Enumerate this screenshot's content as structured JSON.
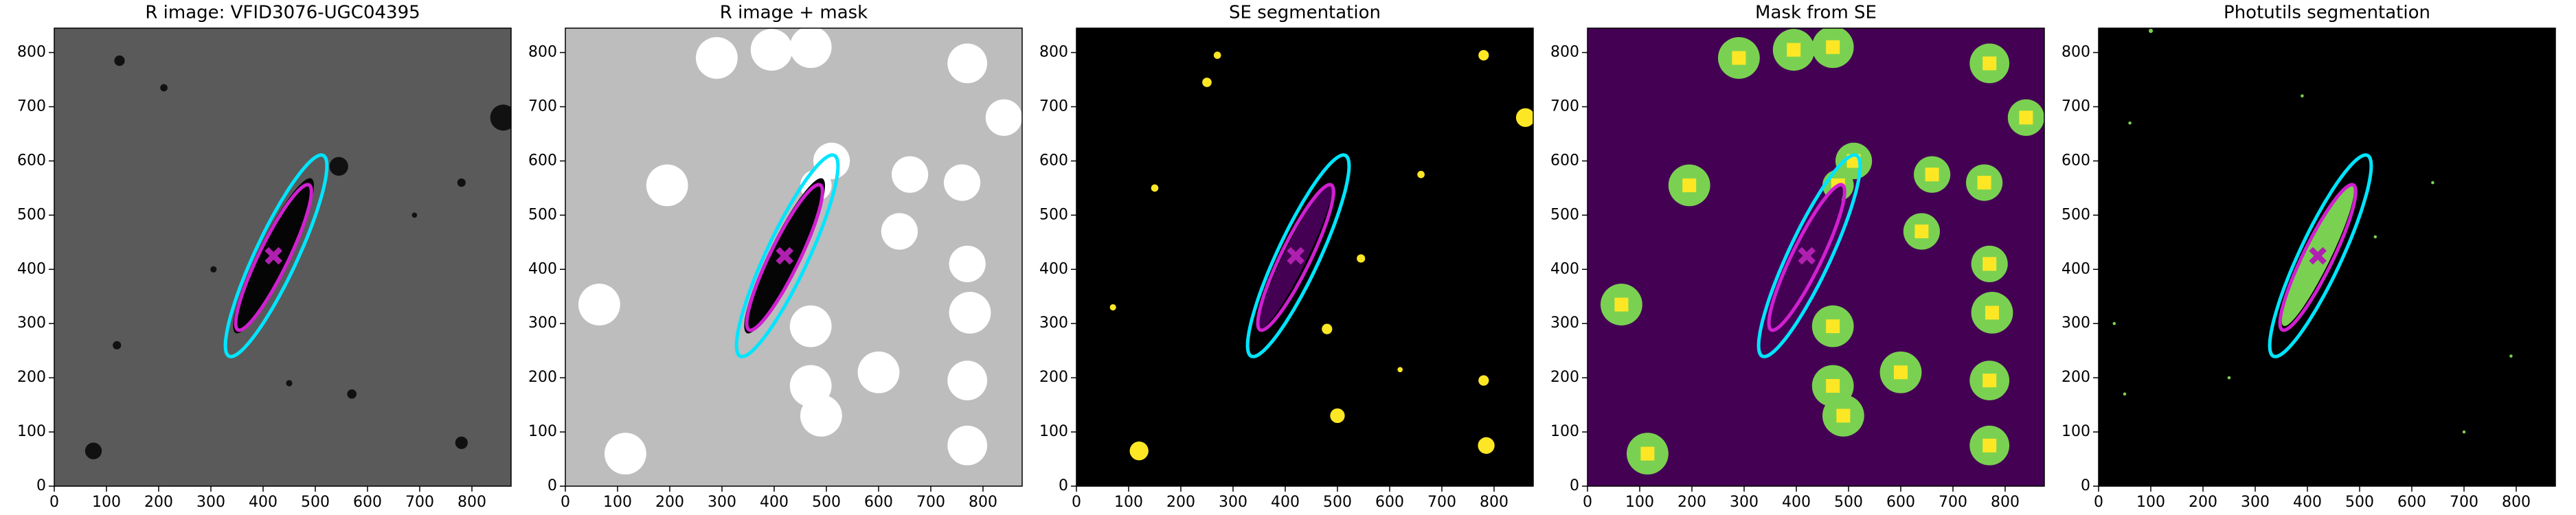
{
  "chart_data": [
    {
      "type": "image",
      "title": "R image: VFID3076-UGC04395",
      "background": "#5a5a5a",
      "source_color": "#111111",
      "xlim": [
        0,
        875
      ],
      "ylim": [
        0,
        845
      ],
      "xticks": [
        0,
        100,
        200,
        300,
        400,
        500,
        600,
        700,
        800
      ],
      "yticks": [
        0,
        100,
        200,
        300,
        400,
        500,
        600,
        700,
        800
      ],
      "galaxy": {
        "color": "#050505",
        "center": [
          420,
          425
        ],
        "semi_axes": [
          160,
          30
        ],
        "angle": 63
      },
      "ellipses": [
        {
          "color": "#00e5ff",
          "center": [
            425,
            425
          ],
          "semi_axes": [
            206,
            40
          ],
          "angle": 64
        },
        {
          "color": "#d020d0",
          "center": [
            420,
            422
          ],
          "semi_axes": [
            150,
            28
          ],
          "angle": 63
        }
      ],
      "marker": {
        "x": 420,
        "y": 425,
        "color": "#b020b0"
      }
    },
    {
      "type": "image",
      "title": "R image + mask",
      "background": "#bdbdbd",
      "source_color": "#ffffff",
      "xlim": [
        0,
        875
      ],
      "ylim": [
        0,
        845
      ],
      "xticks": [
        0,
        100,
        200,
        300,
        400,
        500,
        600,
        700,
        800
      ],
      "yticks": [
        0,
        100,
        200,
        300,
        400,
        500,
        600,
        700,
        800
      ],
      "galaxy": {
        "color": "#050505",
        "center": [
          420,
          425
        ],
        "semi_axes": [
          160,
          30
        ],
        "angle": 63
      },
      "ellipses": [
        {
          "color": "#00e5ff",
          "center": [
            425,
            425
          ],
          "semi_axes": [
            206,
            40
          ],
          "angle": 64
        },
        {
          "color": "#d020d0",
          "center": [
            420,
            422
          ],
          "semi_axes": [
            150,
            28
          ],
          "angle": 63
        }
      ],
      "marker": {
        "x": 420,
        "y": 425,
        "color": "#b020b0"
      }
    },
    {
      "type": "image",
      "title": "SE segmentation",
      "background": "#000000",
      "source_color": "#fde725",
      "xlim": [
        0,
        875
      ],
      "ylim": [
        0,
        845
      ],
      "xticks": [
        0,
        100,
        200,
        300,
        400,
        500,
        600,
        700,
        800
      ],
      "yticks": [
        0,
        100,
        200,
        300,
        400,
        500,
        600,
        700,
        800
      ],
      "galaxy": {
        "color": "#440154",
        "center": [
          420,
          425
        ],
        "semi_axes": [
          150,
          22
        ],
        "angle": 63
      },
      "ellipses": [
        {
          "color": "#00e5ff",
          "center": [
            425,
            425
          ],
          "semi_axes": [
            206,
            40
          ],
          "angle": 64
        },
        {
          "color": "#d020d0",
          "center": [
            420,
            422
          ],
          "semi_axes": [
            150,
            28
          ],
          "angle": 63
        }
      ],
      "marker": {
        "x": 420,
        "y": 425,
        "color": "#b020b0"
      }
    },
    {
      "type": "image",
      "title": "Mask from SE",
      "background": "#440154",
      "source_color": "#7ad151",
      "xlim": [
        0,
        875
      ],
      "ylim": [
        0,
        845
      ],
      "xticks": [
        0,
        100,
        200,
        300,
        400,
        500,
        600,
        700,
        800
      ],
      "yticks": [
        0,
        100,
        200,
        300,
        400,
        500,
        600,
        700,
        800
      ],
      "galaxy": {
        "color": "#440154",
        "center": [
          420,
          425
        ],
        "semi_axes": [
          150,
          22
        ],
        "angle": 63
      },
      "ellipses": [
        {
          "color": "#00e5ff",
          "center": [
            425,
            425
          ],
          "semi_axes": [
            206,
            40
          ],
          "angle": 64
        },
        {
          "color": "#d020d0",
          "center": [
            420,
            422
          ],
          "semi_axes": [
            150,
            28
          ],
          "angle": 63
        }
      ],
      "marker": {
        "x": 420,
        "y": 425,
        "color": "#b020b0"
      }
    },
    {
      "type": "image",
      "title": "Photutils segmentation",
      "background": "#000000",
      "source_color": "#7ad151",
      "xlim": [
        0,
        875
      ],
      "ylim": [
        0,
        845
      ],
      "xticks": [
        0,
        100,
        200,
        300,
        400,
        500,
        600,
        700,
        800
      ],
      "yticks": [
        0,
        100,
        200,
        300,
        400,
        500,
        600,
        700,
        800
      ],
      "galaxy": {
        "color": "#7ad151",
        "center": [
          420,
          425
        ],
        "semi_axes": [
          145,
          24
        ],
        "angle": 63
      },
      "ellipses": [
        {
          "color": "#00e5ff",
          "center": [
            425,
            425
          ],
          "semi_axes": [
            206,
            40
          ],
          "angle": 64
        },
        {
          "color": "#d020d0",
          "center": [
            420,
            422
          ],
          "semi_axes": [
            150,
            28
          ],
          "angle": 63
        }
      ],
      "marker": {
        "x": 420,
        "y": 425,
        "color": "#b020b0"
      }
    }
  ]
}
